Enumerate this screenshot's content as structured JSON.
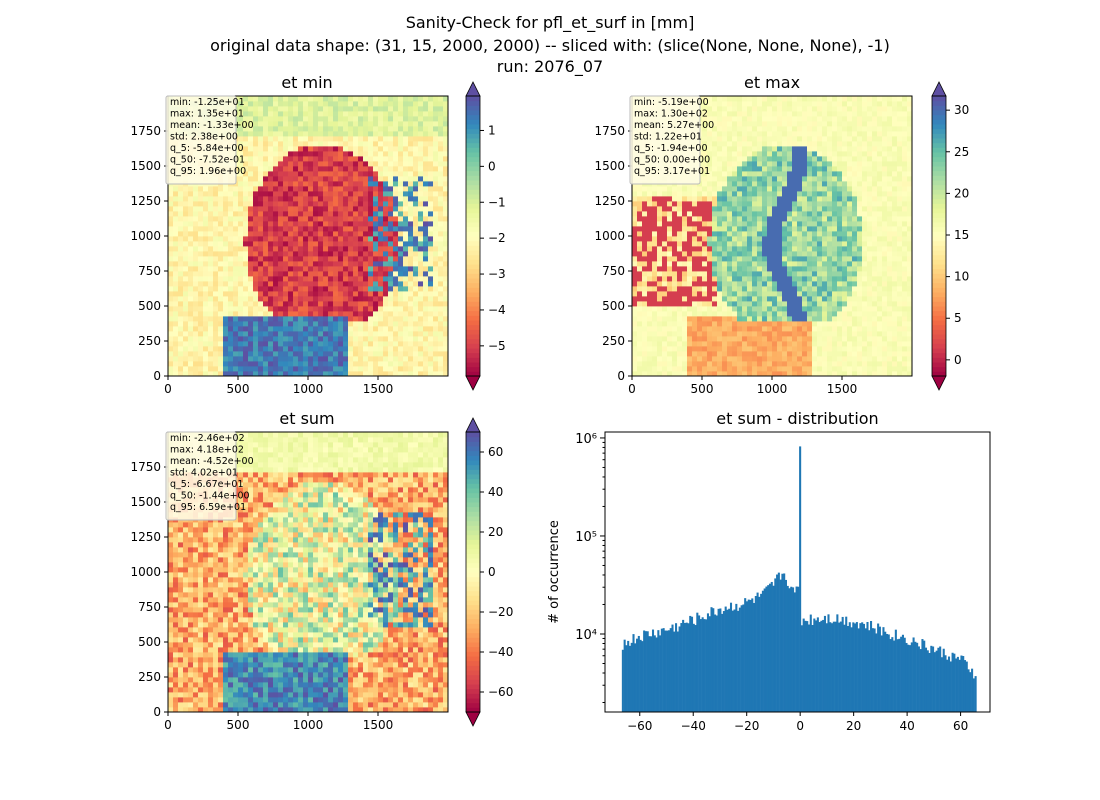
{
  "figure": {
    "title_lines": [
      "Sanity-Check for pfl_et_surf in [mm]",
      "original data shape: (31, 15, 2000, 2000) -- sliced with: (slice(None, None, None), -1)",
      "run: 2076_07"
    ]
  },
  "chart_data": [
    {
      "type": "heatmap",
      "title": "et min",
      "xlim": [
        0,
        2000
      ],
      "ylim": [
        0,
        2000
      ],
      "xticks": [
        0,
        500,
        1000,
        1500
      ],
      "yticks": [
        0,
        250,
        500,
        750,
        1000,
        1250,
        1500,
        1750
      ],
      "colormap": "Spectral",
      "colorbar": {
        "range": [
          -5.84,
          1.96
        ],
        "ticks": [
          1,
          0,
          -1,
          -2,
          -3,
          -4,
          -5
        ],
        "tick_labels": [
          "1",
          "0",
          "−1",
          "−2",
          "−3",
          "−4",
          "−5"
        ],
        "extend": "both"
      },
      "stats": [
        "min: -1.25e+01",
        "max: 1.35e+01",
        "mean: -1.33e+00",
        "std: 2.38e+00",
        "q_5: -5.84e+00",
        "q_50: -7.52e-01",
        "q_95: 1.96e+00"
      ]
    },
    {
      "type": "heatmap",
      "title": "et max",
      "xlim": [
        0,
        2000
      ],
      "ylim": [
        0,
        2000
      ],
      "xticks": [
        0,
        500,
        1000,
        1500
      ],
      "yticks": [
        0,
        250,
        500,
        750,
        1000,
        1250,
        1500,
        1750
      ],
      "colormap": "Spectral",
      "colorbar": {
        "range": [
          -1.94,
          31.7
        ],
        "ticks": [
          30,
          25,
          20,
          15,
          10,
          5,
          0
        ],
        "tick_labels": [
          "30",
          "25",
          "20",
          "15",
          "10",
          "5",
          "0"
        ],
        "extend": "both"
      },
      "stats": [
        "min: -5.19e+00",
        "max: 1.30e+02",
        "mean: 5.27e+00",
        "std: 1.22e+01",
        "q_5: -1.94e+00",
        "q_50: 0.00e+00",
        "q_95: 3.17e+01"
      ]
    },
    {
      "type": "heatmap",
      "title": "et sum",
      "xlim": [
        0,
        2000
      ],
      "ylim": [
        0,
        2000
      ],
      "xticks": [
        0,
        500,
        1000,
        1500
      ],
      "yticks": [
        0,
        250,
        500,
        750,
        1000,
        1250,
        1500,
        1750
      ],
      "colormap": "Spectral",
      "colorbar": {
        "range": [
          -70,
          70
        ],
        "ticks": [
          60,
          40,
          20,
          0,
          -20,
          -40,
          -60
        ],
        "tick_labels": [
          "60",
          "40",
          "20",
          "0",
          "−20",
          "−40",
          "−60"
        ],
        "extend": "both"
      },
      "stats": [
        "min: -2.46e+02",
        "max: 4.18e+02",
        "mean: -4.52e+00",
        "std: 4.02e+01",
        "q_5: -6.67e+01",
        "q_50: -1.44e+00",
        "q_95: 6.59e+01"
      ]
    },
    {
      "type": "bar",
      "title": "et sum - distribution",
      "ylabel": "# of occurrence",
      "xlim": [
        -73,
        71
      ],
      "ylog": true,
      "ylim": [
        1600,
        1150000
      ],
      "xticks": [
        -60,
        -40,
        -20,
        0,
        20,
        40,
        60
      ],
      "xtick_labels": [
        "−60",
        "−40",
        "−20",
        "0",
        "20",
        "40",
        "60"
      ],
      "yticks": [
        10000,
        100000,
        1000000
      ],
      "ytick_labels": [
        "10⁴",
        "10⁵",
        "10⁶"
      ],
      "bin_range": [
        -66.7,
        65.9
      ],
      "bars_summary": [
        {
          "x": -66,
          "y": 8000
        },
        {
          "x": -60,
          "y": 9500
        },
        {
          "x": -50,
          "y": 11000
        },
        {
          "x": -40,
          "y": 14000
        },
        {
          "x": -30,
          "y": 18000
        },
        {
          "x": -20,
          "y": 21000
        },
        {
          "x": -14,
          "y": 25000
        },
        {
          "x": -10,
          "y": 32000
        },
        {
          "x": -7,
          "y": 42000
        },
        {
          "x": -5,
          "y": 38000
        },
        {
          "x": -2,
          "y": 24000
        },
        {
          "x": 0,
          "y": 820000
        },
        {
          "x": 1,
          "y": 14000
        },
        {
          "x": 10,
          "y": 15000
        },
        {
          "x": 20,
          "y": 13500
        },
        {
          "x": 30,
          "y": 11000
        },
        {
          "x": 40,
          "y": 9000
        },
        {
          "x": 50,
          "y": 7000
        },
        {
          "x": 60,
          "y": 5500
        },
        {
          "x": 65,
          "y": 4000
        }
      ]
    }
  ],
  "colors": {
    "bar": "#1f77b4",
    "axis": "#000000",
    "stats_box_border": "#bbbbbb"
  }
}
